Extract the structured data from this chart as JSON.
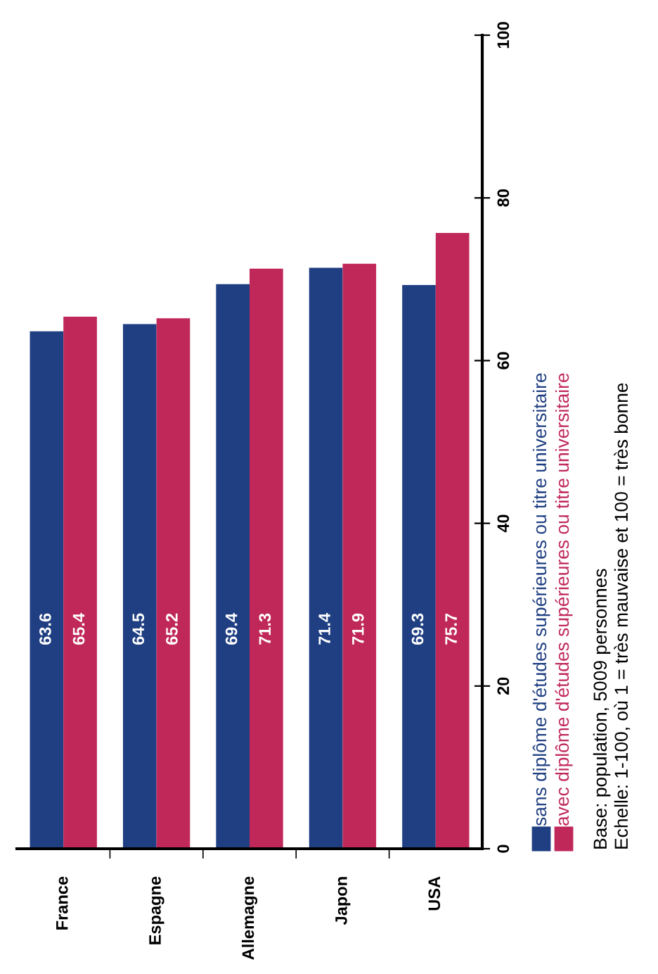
{
  "chart_data": {
    "type": "bar",
    "categories": [
      "France",
      "Espagne",
      "Allemagne",
      "Japon",
      "USA"
    ],
    "series": [
      {
        "name": "sans diplôme d'études supérieures ou titre universitaire",
        "color": "#1f3f82",
        "values": [
          63.6,
          64.5,
          69.4,
          71.4,
          69.3
        ]
      },
      {
        "name": "avec diplôme d'études supérieures ou titre universitaire",
        "color": "#c0285a",
        "values": [
          65.4,
          65.2,
          71.3,
          71.9,
          75.7
        ]
      }
    ],
    "ylim": [
      0,
      100
    ],
    "yticks": [
      0,
      20,
      40,
      60,
      80,
      100
    ],
    "data_labels": true,
    "grid": false,
    "legend": "right",
    "annotations": [
      "Base: population, 5009 personnes",
      "Echelle: 1-100, où 1 = très mauvaise et 100 = très bonne"
    ]
  }
}
